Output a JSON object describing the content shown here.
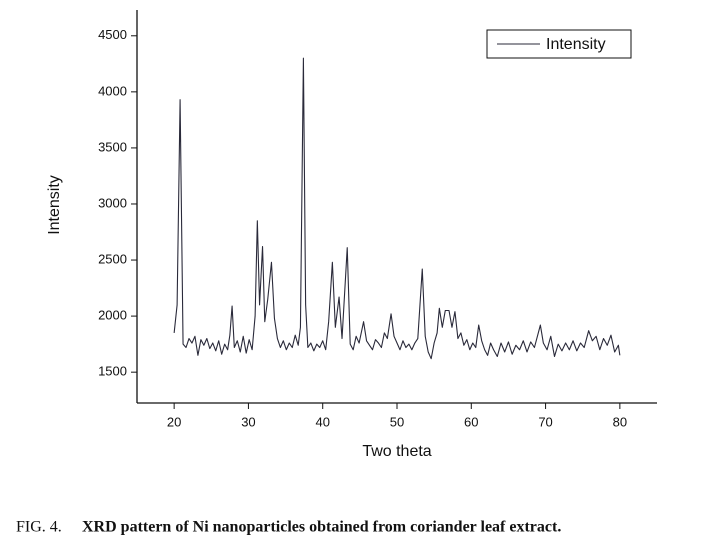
{
  "chart_data": {
    "type": "line",
    "xlabel": "Two theta",
    "ylabel": "Intensity",
    "caption_label": "FIG. 4.",
    "caption": "XRD pattern of Ni nanoparticles obtained from coriander leaf extract.",
    "x": [
      20.0,
      20.4,
      20.8,
      21.2,
      21.6,
      22.0,
      22.4,
      22.8,
      23.2,
      23.6,
      24.0,
      24.4,
      24.8,
      25.2,
      25.6,
      26.0,
      26.4,
      26.8,
      27.2,
      27.5,
      27.8,
      28.1,
      28.5,
      28.9,
      29.3,
      29.7,
      30.1,
      30.5,
      30.9,
      31.2,
      31.5,
      31.9,
      32.2,
      32.6,
      33.1,
      33.5,
      33.9,
      34.3,
      34.7,
      35.1,
      35.5,
      35.9,
      36.3,
      36.7,
      37.0,
      37.4,
      37.7,
      38.0,
      38.4,
      38.8,
      39.2,
      39.6,
      40.0,
      40.4,
      40.8,
      41.3,
      41.7,
      42.2,
      42.6,
      43.3,
      43.7,
      44.1,
      44.5,
      44.9,
      45.5,
      45.9,
      46.3,
      46.7,
      47.1,
      47.5,
      47.9,
      48.3,
      48.7,
      49.2,
      49.6,
      50.0,
      50.4,
      50.8,
      51.2,
      51.6,
      52.0,
      52.4,
      52.8,
      53.4,
      53.8,
      54.2,
      54.6,
      55.0,
      55.4,
      55.7,
      56.1,
      56.5,
      57.0,
      57.4,
      57.8,
      58.2,
      58.6,
      59.0,
      59.4,
      59.8,
      60.2,
      60.6,
      61.0,
      61.4,
      61.8,
      62.2,
      62.6,
      63.0,
      63.5,
      64.0,
      64.5,
      65.0,
      65.5,
      66.0,
      66.5,
      67.0,
      67.5,
      68.0,
      68.5,
      69.3,
      69.7,
      70.2,
      70.7,
      71.2,
      71.7,
      72.2,
      72.7,
      73.2,
      73.7,
      74.2,
      74.7,
      75.2,
      75.8,
      76.3,
      76.8,
      77.3,
      77.8,
      78.3,
      78.8,
      79.3,
      79.8,
      80.0
    ],
    "series": [
      {
        "name": "Intensity",
        "color": "#2a2a3a",
        "values": [
          1850,
          2100,
          3930,
          1750,
          1720,
          1800,
          1760,
          1820,
          1650,
          1790,
          1740,
          1800,
          1710,
          1760,
          1690,
          1780,
          1660,
          1750,
          1700,
          1830,
          2090,
          1720,
          1780,
          1680,
          1820,
          1670,
          1790,
          1700,
          2000,
          2850,
          2100,
          2620,
          1950,
          2150,
          2480,
          1980,
          1800,
          1720,
          1780,
          1700,
          1760,
          1720,
          1830,
          1740,
          1900,
          4300,
          2100,
          1720,
          1760,
          1690,
          1750,
          1720,
          1780,
          1700,
          1950,
          2480,
          1900,
          2170,
          1800,
          2610,
          1750,
          1700,
          1820,
          1760,
          1950,
          1780,
          1740,
          1700,
          1790,
          1760,
          1720,
          1850,
          1800,
          2020,
          1820,
          1760,
          1700,
          1780,
          1720,
          1750,
          1700,
          1760,
          1800,
          2420,
          1820,
          1680,
          1620,
          1760,
          1850,
          2070,
          1900,
          2050,
          2050,
          1900,
          2040,
          1800,
          1850,
          1740,
          1790,
          1700,
          1760,
          1720,
          1920,
          1780,
          1700,
          1650,
          1760,
          1700,
          1640,
          1760,
          1680,
          1770,
          1660,
          1740,
          1700,
          1780,
          1680,
          1770,
          1720,
          1920,
          1760,
          1700,
          1820,
          1640,
          1750,
          1690,
          1760,
          1700,
          1780,
          1690,
          1760,
          1720,
          1870,
          1780,
          1820,
          1700,
          1800,
          1740,
          1830,
          1680,
          1740,
          1650
        ]
      }
    ],
    "xlim": [
      15,
      85
    ],
    "xticks": [
      20,
      30,
      40,
      50,
      60,
      70,
      80
    ],
    "ylim": [
      1225,
      4730
    ],
    "yticks": [
      1500,
      2000,
      2500,
      3000,
      3500,
      4000,
      4500
    ],
    "legend": "upper right"
  }
}
